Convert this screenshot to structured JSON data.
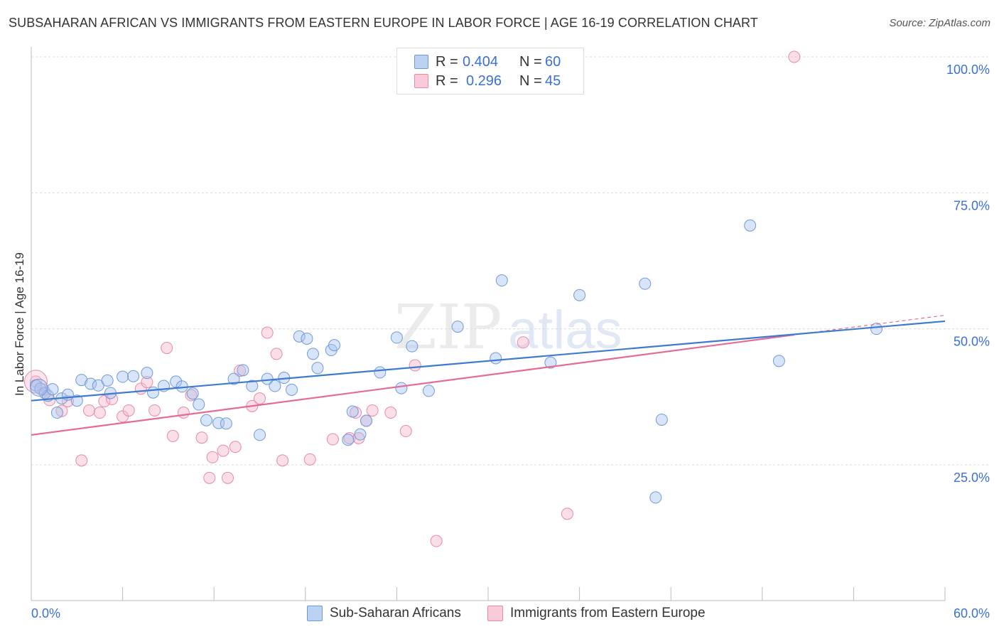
{
  "title": "SUBSAHARAN AFRICAN VS IMMIGRANTS FROM EASTERN EUROPE IN LABOR FORCE | AGE 16-19 CORRELATION CHART",
  "source": "Source: ZipAtlas.com",
  "watermark": {
    "zip": "ZIP",
    "atlas": "atlas"
  },
  "legend": {
    "r_label": "R =",
    "n_label": "N =",
    "series1": {
      "r": "0.404",
      "n": "60"
    },
    "series2": {
      "r": "0.296",
      "n": "45"
    }
  },
  "colors": {
    "series1_fill": "#a9c4ee",
    "series1_stroke": "#6f9ad9",
    "series1_line": "#3f7ad1",
    "series2_fill": "#f6b8cb",
    "series2_stroke": "#e58aa8",
    "series2_line": "#e36b95",
    "tick_label": "#3a6fd6",
    "grid": "#dcdcdc"
  },
  "chart_data": {
    "type": "scatter",
    "title": "SUBSAHARAN AFRICAN VS IMMIGRANTS FROM EASTERN EUROPE IN LABOR FORCE | AGE 16-19 CORRELATION CHART",
    "xlabel": "",
    "ylabel": "In Labor Force | Age 16-19",
    "xlim": [
      0,
      60
    ],
    "ylim": [
      0,
      102
    ],
    "x_tick_labels": [
      {
        "value": 0,
        "label": "0.0%"
      },
      {
        "value": 60,
        "label": "60.0%"
      }
    ],
    "y_tick_labels": [
      {
        "value": 25,
        "label": "25.0%"
      },
      {
        "value": 50,
        "label": "50.0%"
      },
      {
        "value": 75,
        "label": "75.0%"
      },
      {
        "value": 100,
        "label": "100.0%"
      }
    ],
    "grid": true,
    "legend_position": "top-center",
    "series": [
      {
        "name": "Sub-Saharan Africans",
        "color": "#a9c4ee",
        "points": [
          [
            0.3,
            39.6
          ],
          [
            0.6,
            39.0
          ],
          [
            0.9,
            38.2
          ],
          [
            1.1,
            37.7
          ],
          [
            1.4,
            38.9
          ],
          [
            1.7,
            34.6
          ],
          [
            2.0,
            37.2
          ],
          [
            2.4,
            37.9
          ],
          [
            3.0,
            36.8
          ],
          [
            3.3,
            40.6
          ],
          [
            3.9,
            39.9
          ],
          [
            4.4,
            39.6
          ],
          [
            5.2,
            38.2
          ],
          [
            5.0,
            40.5
          ],
          [
            6.0,
            41.2
          ],
          [
            6.7,
            41.3
          ],
          [
            7.6,
            41.9
          ],
          [
            8.0,
            38.3
          ],
          [
            8.7,
            39.5
          ],
          [
            9.5,
            40.3
          ],
          [
            9.9,
            39.4
          ],
          [
            10.6,
            38.1
          ],
          [
            11.0,
            36.1
          ],
          [
            11.5,
            33.2
          ],
          [
            12.3,
            32.7
          ],
          [
            12.8,
            32.6
          ],
          [
            13.3,
            40.8
          ],
          [
            13.9,
            42.4
          ],
          [
            14.5,
            39.5
          ],
          [
            15.0,
            30.5
          ],
          [
            15.5,
            40.8
          ],
          [
            16.0,
            39.5
          ],
          [
            16.6,
            41.0
          ],
          [
            17.1,
            38.8
          ],
          [
            17.6,
            48.6
          ],
          [
            18.1,
            48.2
          ],
          [
            18.5,
            45.4
          ],
          [
            18.8,
            42.8
          ],
          [
            19.7,
            46.1
          ],
          [
            19.9,
            47.0
          ],
          [
            20.8,
            29.6
          ],
          [
            21.1,
            34.8
          ],
          [
            21.6,
            30.6
          ],
          [
            22.0,
            33.1
          ],
          [
            22.9,
            42.0
          ],
          [
            24.0,
            48.4
          ],
          [
            24.3,
            39.1
          ],
          [
            25.0,
            46.8
          ],
          [
            26.1,
            38.6
          ],
          [
            28.0,
            50.4
          ],
          [
            30.5,
            44.6
          ],
          [
            30.9,
            58.9
          ],
          [
            34.1,
            43.8
          ],
          [
            36.0,
            56.2
          ],
          [
            40.3,
            58.3
          ],
          [
            41.0,
            19.0
          ],
          [
            41.4,
            33.3
          ],
          [
            47.2,
            69.0
          ],
          [
            49.1,
            44.1
          ],
          [
            55.5,
            50.0
          ]
        ]
      },
      {
        "name": "Immigrants from Eastern Europe",
        "color": "#f6b8cb",
        "points": [
          [
            0.3,
            40.3
          ],
          [
            0.8,
            38.8
          ],
          [
            1.2,
            36.9
          ],
          [
            2.0,
            34.9
          ],
          [
            2.4,
            36.7
          ],
          [
            3.3,
            25.8
          ],
          [
            3.8,
            35.0
          ],
          [
            4.5,
            34.6
          ],
          [
            4.8,
            36.7
          ],
          [
            5.3,
            37.1
          ],
          [
            6.0,
            33.9
          ],
          [
            6.4,
            35.0
          ],
          [
            7.2,
            39.0
          ],
          [
            7.6,
            40.2
          ],
          [
            8.1,
            35.0
          ],
          [
            8.9,
            46.5
          ],
          [
            9.3,
            30.3
          ],
          [
            10.0,
            34.6
          ],
          [
            10.5,
            37.8
          ],
          [
            11.2,
            30.0
          ],
          [
            11.7,
            22.6
          ],
          [
            11.9,
            26.4
          ],
          [
            12.6,
            27.6
          ],
          [
            12.9,
            22.6
          ],
          [
            13.4,
            28.3
          ],
          [
            13.7,
            42.3
          ],
          [
            14.5,
            35.8
          ],
          [
            15.5,
            49.3
          ],
          [
            16.1,
            45.4
          ],
          [
            16.5,
            25.8
          ],
          [
            18.3,
            26.0
          ],
          [
            19.8,
            29.7
          ],
          [
            20.9,
            29.9
          ],
          [
            21.5,
            29.9
          ],
          [
            22.0,
            33.1
          ],
          [
            22.4,
            35.0
          ],
          [
            23.6,
            34.6
          ],
          [
            24.6,
            31.2
          ],
          [
            25.2,
            43.3
          ],
          [
            26.6,
            11.0
          ],
          [
            32.3,
            47.5
          ],
          [
            35.2,
            16.0
          ],
          [
            50.1,
            100.0
          ],
          [
            21.3,
            34.6
          ],
          [
            15.0,
            37.2
          ]
        ]
      }
    ],
    "trend_lines": [
      {
        "series": "Sub-Saharan Africans",
        "x": [
          0,
          60
        ],
        "y": [
          36.8,
          51.4
        ]
      },
      {
        "series": "Immigrants from Eastern Europe",
        "x": [
          0,
          50.1
        ],
        "y": [
          30.5,
          48.9
        ]
      },
      {
        "series": "Immigrants from Eastern Europe (extension)",
        "x": [
          50.1,
          60
        ],
        "y": [
          48.9,
          52.5
        ]
      }
    ]
  }
}
